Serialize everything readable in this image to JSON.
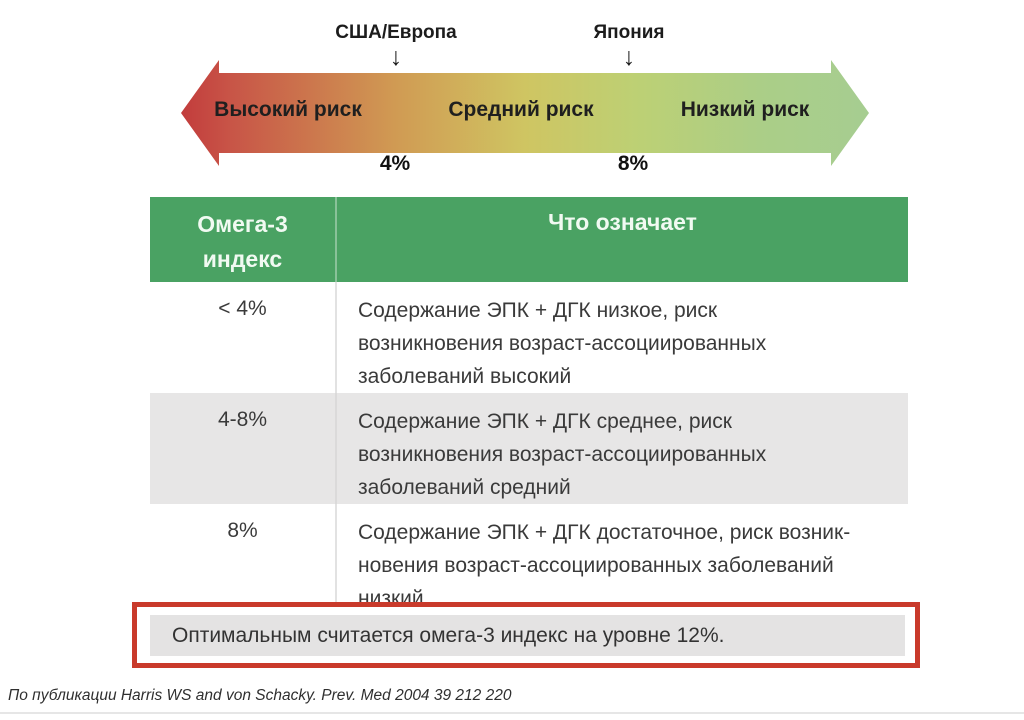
{
  "scale": {
    "markers": [
      {
        "label": "США/Европа",
        "value": "4%"
      },
      {
        "label": "Япония",
        "value": "8%"
      }
    ],
    "zones": [
      {
        "label": "Высокий риск"
      },
      {
        "label": "Средний риск"
      },
      {
        "label": "Низкий риск"
      }
    ],
    "gradient": {
      "left": "#c23c3c",
      "middle": "#cfc562",
      "right": "#a6cd91"
    }
  },
  "icons": {
    "down_arrow": "↓"
  },
  "table": {
    "header": {
      "col1": "Омега-3\nиндекс",
      "col2": "Что означает",
      "bg_color": "#4aa263"
    },
    "rows": [
      {
        "index": "< 4%",
        "meaning": "Содержание ЭПК + ДГК низкое, риск\nвозникновения возраст-ассоциированных\nзаболеваний высокий"
      },
      {
        "index": "4-8%",
        "meaning": "Содержание ЭПК + ДГК среднее, риск\nвозникновения возраст-ассоциированных\nзаболеваний средний"
      },
      {
        "index": "8%",
        "meaning": "Содержание ЭПК + ДГК достаточное, риск возник-\nновения возраст-ассоциированных заболеваний\nнизкий"
      }
    ]
  },
  "callout": {
    "text": "Оптимальным считается омега-3 индекс на уровне 12%.",
    "border_color": "#c93a2b",
    "bg_color": "#e4e3e3"
  },
  "footer": {
    "citation": "По публикации Harris WS and von Schacky. Prev. Med 2004 39 212 220"
  }
}
